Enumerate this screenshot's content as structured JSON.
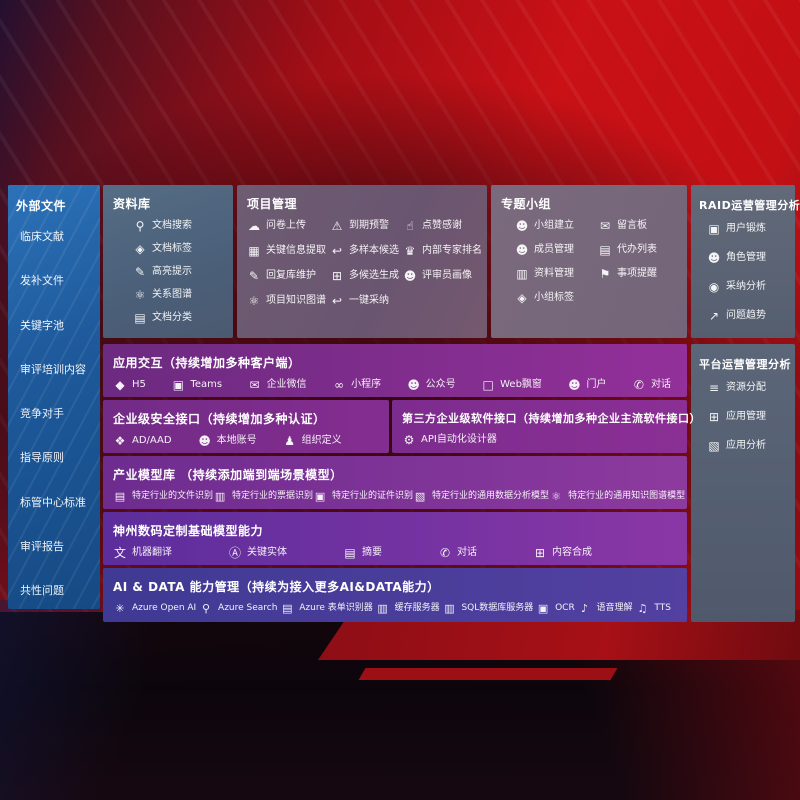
{
  "colors": {
    "background_red": "#c91116",
    "external_panel_blue": "#1e5a9c",
    "purple_row": "#7c2c8e",
    "indigo_row": "#4a3d9a",
    "slate_panel": "#5b6678"
  },
  "external": {
    "title": "外部文件",
    "items": [
      "临床文献",
      "发补文件",
      "关键字池",
      "审评培训内容",
      "竞争对手",
      "指导原则",
      "标管中心标准",
      "审评报告",
      "共性问题"
    ]
  },
  "datalib": {
    "title": "资料库",
    "items": [
      {
        "icon": "doc-search-icon",
        "label": "文档搜索"
      },
      {
        "icon": "tag-icon",
        "label": "文档标签"
      },
      {
        "icon": "highlight-pen-icon",
        "label": "高亮提示"
      },
      {
        "icon": "relation-graph-icon",
        "label": "关系图谱"
      },
      {
        "icon": "doc-category-icon",
        "label": "文档分类"
      }
    ]
  },
  "project": {
    "title": "项目管理",
    "items": [
      {
        "icon": "cloud-upload-icon",
        "label": "问卷上传"
      },
      {
        "icon": "alarm-icon",
        "label": "到期预警"
      },
      {
        "icon": "thumbs-up-icon",
        "label": "点赞感谢"
      },
      {
        "icon": "key-info-icon",
        "label": "关键信息提取"
      },
      {
        "icon": "reply-icon",
        "label": "多样本候选"
      },
      {
        "icon": "ranking-icon",
        "label": "内部专家排名"
      },
      {
        "icon": "pen-icon",
        "label": "回复库维护"
      },
      {
        "icon": "multi-gen-icon",
        "label": "多候选生成"
      },
      {
        "icon": "person-icon",
        "label": "评审员画像"
      },
      {
        "icon": "knowledge-graph-icon",
        "label": "项目知识图谱"
      },
      {
        "icon": "adopt-icon",
        "label": "一键采纳"
      }
    ]
  },
  "groups": {
    "title": "专题小组",
    "items": [
      {
        "icon": "team-icon",
        "label": "小组建立"
      },
      {
        "icon": "message-board-icon",
        "label": "留言板"
      },
      {
        "icon": "member-icon",
        "label": "成员管理"
      },
      {
        "icon": "todo-list-icon",
        "label": "代办列表"
      },
      {
        "icon": "material-icon",
        "label": "资料管理"
      },
      {
        "icon": "bell-icon",
        "label": "事项提醒"
      },
      {
        "icon": "tag-icon",
        "label": "小组标签"
      }
    ]
  },
  "raid": {
    "title": "RAID运营管理分析",
    "items": [
      {
        "icon": "id-card-icon",
        "label": "用户锻炼"
      },
      {
        "icon": "role-icon",
        "label": "角色管理"
      },
      {
        "icon": "qa-chat-icon",
        "label": "采纳分析"
      },
      {
        "icon": "trend-icon",
        "label": "问题趋势"
      }
    ]
  },
  "platform": {
    "title": "平台运营管理分析",
    "items": [
      {
        "icon": "resource-list-icon",
        "label": "资源分配"
      },
      {
        "icon": "apps-icon",
        "label": "应用管理"
      },
      {
        "icon": "app-analytics-icon",
        "label": "应用分析"
      }
    ]
  },
  "interaction": {
    "title": "应用交互（持续增加多种客户端）",
    "items": [
      {
        "icon": "h5-icon",
        "label": "H5"
      },
      {
        "icon": "teams-icon",
        "label": "Teams"
      },
      {
        "icon": "wechat-work-icon",
        "label": "企业微信"
      },
      {
        "icon": "miniprogram-icon",
        "label": "小程序"
      },
      {
        "icon": "official-account-icon",
        "label": "公众号"
      },
      {
        "icon": "web-popup-icon",
        "label": "Web飘窗"
      },
      {
        "icon": "portal-icon",
        "label": "门户"
      },
      {
        "icon": "dialog-icon",
        "label": "对话"
      }
    ]
  },
  "security": {
    "title": "企业级安全接口（持续增加多种认证）",
    "items": [
      {
        "icon": "ad-aad-icon",
        "label": "AD/AAD"
      },
      {
        "icon": "local-account-icon",
        "label": "本地账号"
      },
      {
        "icon": "org-definition-icon",
        "label": "组织定义"
      }
    ]
  },
  "thirdparty": {
    "title": "第三方企业级软件接口（持续增加多种企业主流软件接口）",
    "items": [
      {
        "icon": "api-gear-icon",
        "label": "API自动化设计器"
      }
    ]
  },
  "industry": {
    "title": "产业模型库 （持续添加端到端场景模型）",
    "items": [
      {
        "icon": "file-recognition-icon",
        "label": "特定行业的文件识别"
      },
      {
        "icon": "receipt-recognition-icon",
        "label": "特定行业的票据识别"
      },
      {
        "icon": "idcard-recognition-icon",
        "label": "特定行业的证件识别"
      },
      {
        "icon": "data-analysis-model-icon",
        "label": "特定行业的通用数据分析模型"
      },
      {
        "icon": "knowledge-graph-icon",
        "label": "特定行业的通用知识图谱模型"
      }
    ]
  },
  "shenzhou": {
    "title": "神州数码定制基础模型能力",
    "items": [
      {
        "icon": "translate-icon",
        "label": "机器翻译"
      },
      {
        "icon": "entity-icon",
        "label": "关键实体"
      },
      {
        "icon": "summary-icon",
        "label": "摘要"
      },
      {
        "icon": "dialog-icon",
        "label": "对话"
      },
      {
        "icon": "compose-icon",
        "label": "内容合成"
      }
    ]
  },
  "ai": {
    "title": "AI & DATA 能力管理（持续为接入更多AI&DATA能力）",
    "items": [
      {
        "icon": "openai-icon",
        "label": "Azure Open AI"
      },
      {
        "icon": "azure-search-icon",
        "label": "Azure Search"
      },
      {
        "icon": "form-recognizer-icon",
        "label": "Azure 表单识别器"
      },
      {
        "icon": "cache-server-icon",
        "label": "缓存服务器"
      },
      {
        "icon": "sql-server-icon",
        "label": "SQL数据库服务器"
      },
      {
        "icon": "ocr-icon",
        "label": "OCR"
      },
      {
        "icon": "speech-icon",
        "label": "语音理解"
      },
      {
        "icon": "tts-icon",
        "label": "TTS"
      }
    ]
  }
}
